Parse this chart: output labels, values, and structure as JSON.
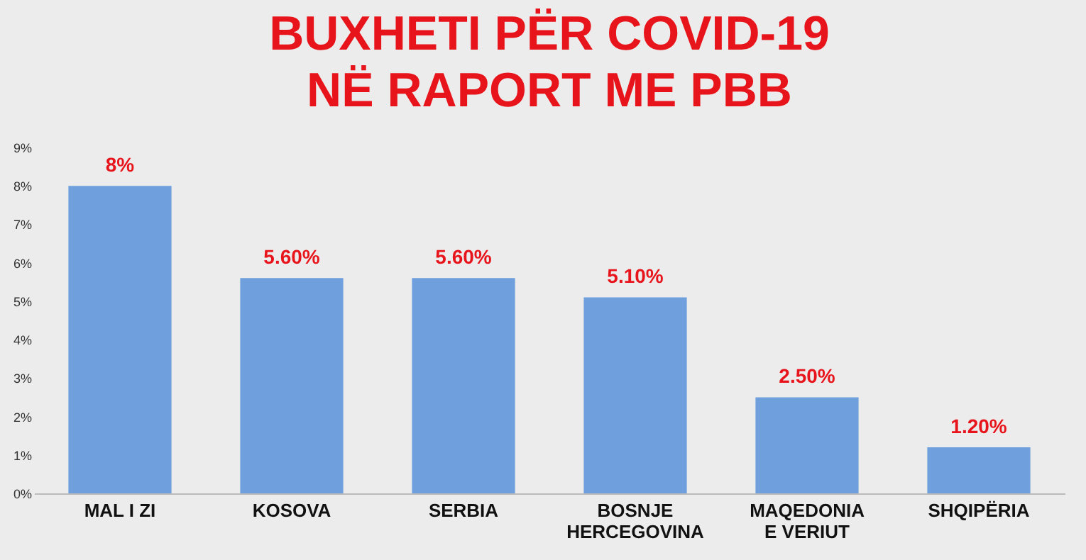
{
  "chart_data": {
    "type": "bar",
    "title": "BUXHETI PËR COVID-19\nNË RAPORT ME PBB",
    "categories": [
      "MAL I ZI",
      "KOSOVA",
      "SERBIA",
      "BOSNJE\nHERCEGOVINA",
      "MAQEDONIA\nE VERIUT",
      "SHQIPËRIA"
    ],
    "values": [
      8,
      5.6,
      5.6,
      5.1,
      2.5,
      1.2
    ],
    "value_labels": [
      "8%",
      "5.60%",
      "5.60%",
      "5.10%",
      "2.50%",
      "1.20%"
    ],
    "color": "#6f9fdc",
    "ylim": [
      0,
      9
    ],
    "yticks": [
      {
        "value": 0,
        "label": "0%"
      },
      {
        "value": 1,
        "label": "1%"
      },
      {
        "value": 2,
        "label": "2%"
      },
      {
        "value": 3,
        "label": "3%"
      },
      {
        "value": 4,
        "label": "4%"
      },
      {
        "value": 5,
        "label": "5%"
      },
      {
        "value": 6,
        "label": "6%"
      },
      {
        "value": 7,
        "label": "7%"
      },
      {
        "value": 8,
        "label": "8%"
      },
      {
        "value": 9,
        "label": "9%"
      }
    ],
    "grid": false
  }
}
